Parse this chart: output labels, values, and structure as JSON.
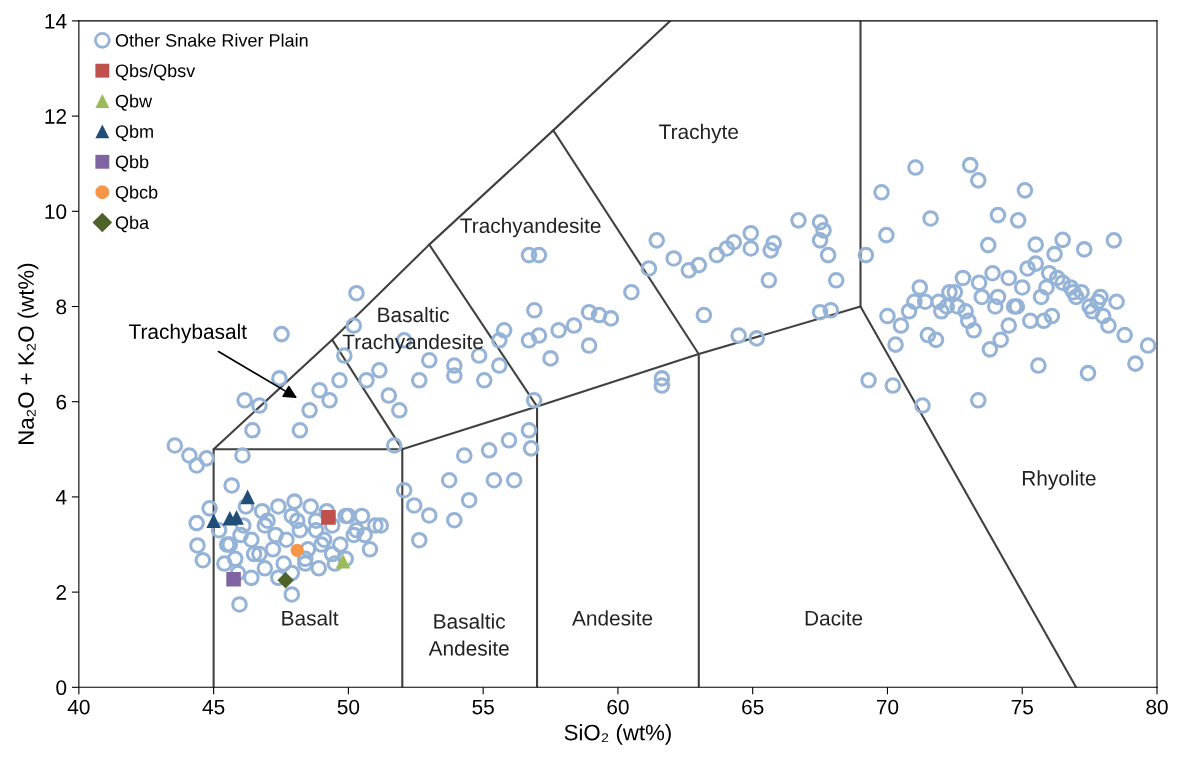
{
  "chart_data": {
    "type": "scatter",
    "xlabel": "SiO₂ (wt%)",
    "ylabel": "Na₂O + K₂O (wt%)",
    "xlim": [
      40,
      80
    ],
    "xticks": [
      40,
      45,
      50,
      55,
      60,
      65,
      70,
      75,
      80
    ],
    "ylim": [
      0,
      14
    ],
    "yticks": [
      0,
      2,
      4,
      6,
      8,
      10,
      12,
      14
    ],
    "grid": false,
    "legend": "top left",
    "series": [
      {
        "name": "Other Snake River Plain",
        "color": "#95b3d7",
        "marker": "circle",
        "x": [
          43.56,
          44.1,
          44.37,
          44.74,
          44.37,
          44.4,
          44.6,
          45.96,
          47.9,
          44.85,
          45.2,
          45.5,
          45.8,
          46.1,
          46.4,
          46.7,
          47.0,
          47.3,
          47.6,
          47.9,
          48.2,
          48.5,
          48.8,
          49.1,
          49.4,
          49.7,
          50.0,
          50.3,
          50.6,
          45.4,
          45.9,
          46.4,
          46.9,
          47.4,
          47.9,
          48.4,
          48.9,
          49.4,
          49.9,
          46.2,
          46.8,
          47.4,
          48.0,
          48.6,
          49.2,
          50.5,
          51.0,
          45.67,
          46.07,
          46.44,
          46.15,
          46.7,
          47.44,
          47.52,
          48.2,
          48.56,
          48.93,
          49.3,
          49.67,
          49.85,
          50.2,
          50.3,
          50.67,
          51.15,
          51.5,
          51.89,
          51.7,
          52.07,
          52.63,
          53.0,
          53.93,
          53.93,
          54.85,
          55.04,
          55.6,
          55.78,
          56.7,
          56.7,
          57.07,
          56.9,
          57.07,
          57.5,
          57.8,
          58.37,
          58.93,
          59.3,
          59.74,
          58.93,
          60.5,
          61.15,
          61.44,
          61.63,
          61.63,
          62.07,
          62.63,
          63.0,
          63.19,
          63.67,
          64.04,
          64.3,
          64.48,
          65.15,
          64.93,
          64.93,
          65.67,
          65.6,
          65.78,
          66.7,
          67.5,
          67.63,
          67.5,
          67.8,
          68.1,
          67.5,
          67.9,
          52.07,
          52.44,
          52.63,
          53.0,
          53.74,
          53.93,
          54.3,
          54.48,
          55.22,
          55.4,
          55.96,
          56.15,
          56.7,
          56.78,
          56.89,
          55.6,
          69.78,
          71.04,
          73.07,
          73.37,
          75.1,
          71.6,
          73.74,
          74.1,
          74.85,
          69.2,
          69.96,
          69.3,
          70.2,
          71.3,
          73.37,
          75.6,
          77.44,
          79.2,
          79.67,
          78.4,
          77.9,
          70.0,
          70.5,
          71.0,
          71.5,
          72.0,
          72.5,
          73.0,
          73.5,
          74.0,
          74.5,
          75.0,
          75.5,
          76.0,
          76.5,
          77.0,
          77.5,
          78.0,
          78.5,
          70.3,
          71.2,
          72.2,
          73.2,
          74.2,
          75.2,
          76.2,
          77.2,
          78.2,
          70.8,
          71.8,
          72.8,
          73.8,
          74.8,
          75.8,
          76.8,
          77.8,
          74.5,
          75.5,
          76.5,
          77.3,
          78.8,
          45.6,
          46.0,
          46.5,
          46.9,
          47.2,
          47.7,
          48.1,
          48.4,
          48.8,
          49.0,
          49.5,
          49.9,
          50.2,
          50.8,
          51.2,
          71.4,
          72.3,
          72.9,
          73.4,
          74.1,
          74.7,
          75.3,
          75.9,
          76.3,
          76.9,
          77.6,
          71.9,
          73.9,
          75.7,
          76.1,
          72.6
        ],
        "values": [
          5.08,
          4.87,
          4.66,
          4.81,
          3.45,
          2.98,
          2.67,
          1.74,
          1.95,
          3.76,
          3.3,
          3.0,
          2.7,
          3.4,
          3.1,
          2.8,
          3.5,
          3.2,
          2.6,
          3.6,
          3.3,
          2.9,
          3.5,
          3.1,
          3.4,
          3.0,
          3.6,
          3.3,
          3.2,
          2.6,
          2.4,
          2.3,
          2.5,
          2.3,
          2.4,
          2.6,
          2.5,
          2.8,
          2.7,
          3.8,
          3.7,
          3.8,
          3.9,
          3.8,
          3.7,
          3.6,
          3.4,
          4.24,
          4.87,
          5.4,
          6.03,
          5.92,
          6.49,
          7.42,
          5.4,
          5.82,
          6.24,
          6.03,
          6.45,
          6.97,
          7.6,
          8.28,
          6.45,
          6.66,
          6.13,
          5.82,
          5.08,
          7.29,
          6.45,
          6.87,
          6.55,
          6.76,
          6.97,
          6.45,
          7.29,
          7.5,
          7.29,
          9.08,
          9.08,
          7.92,
          7.39,
          6.91,
          7.5,
          7.6,
          7.88,
          7.82,
          7.75,
          7.18,
          8.3,
          8.8,
          9.39,
          6.49,
          6.34,
          9.01,
          8.76,
          8.87,
          7.82,
          9.08,
          9.22,
          9.35,
          7.39,
          7.33,
          9.22,
          9.54,
          9.18,
          8.55,
          9.33,
          9.81,
          9.77,
          9.6,
          9.39,
          9.08,
          8.55,
          7.88,
          7.92,
          4.14,
          3.82,
          3.09,
          3.61,
          4.35,
          3.51,
          4.87,
          3.93,
          4.98,
          4.35,
          5.19,
          4.35,
          5.4,
          5.02,
          6.03,
          6.76,
          10.4,
          10.92,
          10.97,
          10.65,
          10.44,
          9.85,
          9.29,
          9.92,
          9.81,
          9.08,
          9.5,
          6.45,
          6.34,
          5.92,
          6.03,
          6.76,
          6.6,
          6.8,
          7.18,
          9.39,
          8.2,
          7.8,
          7.6,
          8.1,
          7.4,
          7.9,
          8.3,
          7.7,
          8.2,
          8.0,
          8.6,
          8.4,
          8.9,
          8.7,
          8.5,
          8.2,
          8.0,
          7.8,
          8.1,
          7.2,
          8.4,
          8.0,
          7.5,
          7.3,
          8.8,
          9.1,
          8.3,
          7.6,
          7.9,
          7.3,
          8.6,
          7.1,
          8.0,
          7.7,
          8.4,
          8.1,
          7.6,
          9.3,
          9.4,
          9.2,
          7.4,
          3.0,
          3.2,
          2.8,
          3.4,
          2.9,
          3.1,
          3.5,
          2.7,
          3.3,
          3.0,
          2.6,
          3.6,
          3.2,
          2.9,
          3.4,
          8.1,
          8.3,
          7.9,
          8.5,
          8.2,
          8.0,
          7.7,
          8.4,
          8.6,
          8.3,
          7.9,
          8.1,
          8.7,
          8.2,
          7.8,
          8.0
        ]
      },
      {
        "name": "Qbs/Qbsv",
        "color": "#c0504d",
        "marker": "square",
        "x": [
          49.26
        ],
        "values": [
          3.57
        ]
      },
      {
        "name": "Qbw",
        "color": "#9bbb59",
        "marker": "triangle",
        "x": [
          49.8
        ],
        "values": [
          2.65
        ]
      },
      {
        "name": "Qbm",
        "color": "#1f4e79",
        "marker": "triangle",
        "x": [
          45.0,
          45.6,
          45.85,
          46.26
        ],
        "values": [
          3.5,
          3.55,
          3.57,
          4.0
        ]
      },
      {
        "name": "Qbb",
        "color": "#8064a2",
        "marker": "square",
        "x": [
          45.74
        ],
        "values": [
          2.27
        ]
      },
      {
        "name": "Qbcb",
        "color": "#f79646",
        "marker": "circle",
        "x": [
          48.1
        ],
        "values": [
          2.88
        ]
      },
      {
        "name": "Qba",
        "color": "#4f6228",
        "marker": "diamond",
        "x": [
          47.67
        ],
        "values": [
          2.25
        ]
      },
      {
        "type": "line",
        "color": "#404040",
        "x": [
          45,
          45,
          52,
          52
        ],
        "values": [
          0,
          5,
          5,
          0
        ]
      },
      {
        "type": "line",
        "color": "#404040",
        "x": [
          57,
          57
        ],
        "values": [
          0,
          5.9
        ]
      },
      {
        "type": "line",
        "color": "#404040",
        "x": [
          63,
          63
        ],
        "values": [
          0,
          7
        ]
      },
      {
        "type": "line",
        "color": "#404040",
        "x": [
          52,
          57,
          63,
          69,
          77
        ],
        "values": [
          5,
          5.9,
          7,
          8,
          0
        ]
      },
      {
        "type": "line",
        "color": "#404040",
        "x": [
          69,
          69
        ],
        "values": [
          8,
          14
        ]
      },
      {
        "type": "line",
        "color": "#404040",
        "x": [
          45,
          49.4,
          53,
          57.6,
          61.94
        ],
        "values": [
          5,
          7.3,
          9.3,
          11.7,
          14
        ]
      },
      {
        "type": "line",
        "color": "#404040",
        "x": [
          49.4,
          52
        ],
        "values": [
          7.3,
          5
        ]
      },
      {
        "type": "line",
        "color": "#404040",
        "x": [
          53,
          57
        ],
        "values": [
          9.3,
          5.9
        ]
      },
      {
        "type": "line",
        "color": "#404040",
        "x": [
          57.6,
          63
        ],
        "values": [
          11.7,
          7
        ]
      }
    ],
    "annotations": [
      "Trachybasalt",
      "Trachyte",
      "Trachyandesite",
      "Basaltic\nTrachyandesite",
      "Basalt",
      "Basaltic\nAndesite",
      "Andesite",
      "Dacite",
      "Rhyolite"
    ]
  }
}
